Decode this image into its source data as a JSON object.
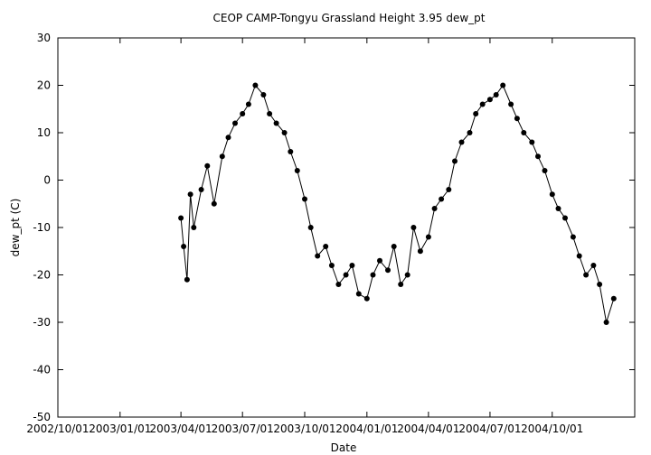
{
  "chart_data": {
    "type": "line",
    "title": "CEOP CAMP-Tongyu Grassland Height 3.95 dew_pt",
    "xlabel": "Date",
    "ylabel": "dew_pt (C)",
    "xlim": [
      "2002-10-01",
      "2005-01-31"
    ],
    "ylim": [
      -50,
      30
    ],
    "grid": false,
    "x_ticks": [
      "2002/10/01",
      "2003/01/01",
      "2003/04/01",
      "2003/07/01",
      "2003/10/01",
      "2004/01/01",
      "2004/04/01",
      "2004/07/01",
      "2004/10/01"
    ],
    "y_ticks": [
      30,
      20,
      10,
      0,
      -10,
      -20,
      -30,
      -40,
      -50
    ],
    "series": [
      {
        "marker": "filled-circle",
        "color": "#000000",
        "x": [
          "2003-04-01",
          "2003-04-05",
          "2003-04-10",
          "2003-04-15",
          "2003-04-20",
          "2003-05-01",
          "2003-05-10",
          "2003-05-20",
          "2003-06-01",
          "2003-06-10",
          "2003-06-20",
          "2003-07-01",
          "2003-07-10",
          "2003-07-20",
          "2003-08-01",
          "2003-08-10",
          "2003-08-20",
          "2003-09-01",
          "2003-09-10",
          "2003-09-20",
          "2003-10-01",
          "2003-10-10",
          "2003-10-20",
          "2003-11-01",
          "2003-11-10",
          "2003-11-20",
          "2003-12-01",
          "2003-12-10",
          "2003-12-20",
          "2004-01-01",
          "2004-01-10",
          "2004-01-20",
          "2004-02-01",
          "2004-02-10",
          "2004-02-20",
          "2004-03-01",
          "2004-03-10",
          "2004-03-20",
          "2004-04-01",
          "2004-04-10",
          "2004-04-20",
          "2004-05-01",
          "2004-05-10",
          "2004-05-20",
          "2004-06-01",
          "2004-06-10",
          "2004-06-20",
          "2004-07-01",
          "2004-07-10",
          "2004-07-20",
          "2004-08-01",
          "2004-08-10",
          "2004-08-20",
          "2004-09-01",
          "2004-09-10",
          "2004-09-20",
          "2004-10-01",
          "2004-10-10",
          "2004-10-20",
          "2004-11-01",
          "2004-11-10",
          "2004-11-20",
          "2004-12-01",
          "2004-12-10",
          "2004-12-20",
          "2004-12-31"
        ],
        "y": [
          -8,
          -14,
          -21,
          -3,
          -10,
          -2,
          3,
          -5,
          5,
          9,
          12,
          14,
          16,
          20,
          18,
          14,
          12,
          10,
          6,
          2,
          -4,
          -10,
          -16,
          -14,
          -18,
          -22,
          -20,
          -18,
          -24,
          -25,
          -20,
          -17,
          -19,
          -14,
          -22,
          -20,
          -10,
          -15,
          -12,
          -6,
          -4,
          -2,
          4,
          8,
          10,
          14,
          16,
          17,
          18,
          20,
          16,
          13,
          10,
          8,
          5,
          2,
          -3,
          -6,
          -8,
          -12,
          -16,
          -20,
          -18,
          -22,
          -30,
          -25
        ]
      }
    ]
  }
}
